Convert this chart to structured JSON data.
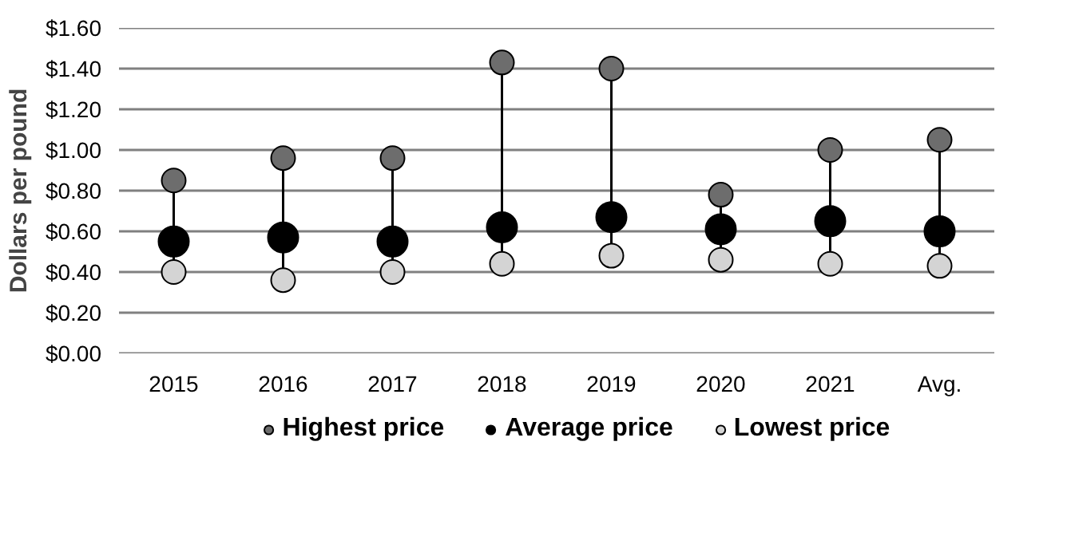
{
  "chart_data": {
    "type": "scatter",
    "ylabel": "Dollars per pound",
    "categories": [
      "2015",
      "2016",
      "2017",
      "2018",
      "2019",
      "2020",
      "2021",
      "Avg."
    ],
    "series": [
      {
        "name": "Highest price",
        "color": "#6d6d6d",
        "values": [
          0.85,
          0.96,
          0.96,
          1.43,
          1.4,
          0.78,
          1.0,
          1.05
        ]
      },
      {
        "name": "Average price",
        "color": "#000000",
        "values": [
          0.55,
          0.57,
          0.55,
          0.62,
          0.67,
          0.61,
          0.65,
          0.6
        ]
      },
      {
        "name": "Lowest price",
        "color": "#d4d4d4",
        "values": [
          0.4,
          0.36,
          0.4,
          0.44,
          0.48,
          0.46,
          0.44,
          0.43
        ]
      }
    ],
    "ylim": [
      0,
      1.6
    ],
    "yticks": [
      {
        "value": 0,
        "label": "$0.00"
      },
      {
        "value": 0.2,
        "label": "$0.20"
      },
      {
        "value": 0.4,
        "label": "$0.40"
      },
      {
        "value": 0.6,
        "label": "$0.60"
      },
      {
        "value": 0.8,
        "label": "$0.80"
      },
      {
        "value": 1.0,
        "label": "$1.00"
      },
      {
        "value": 1.2,
        "label": "$1.20"
      },
      {
        "value": 1.4,
        "label": "$1.40"
      },
      {
        "value": 1.6,
        "label": "$1.60"
      }
    ],
    "grid": "y",
    "legend": "bottom",
    "marker": "circle"
  }
}
